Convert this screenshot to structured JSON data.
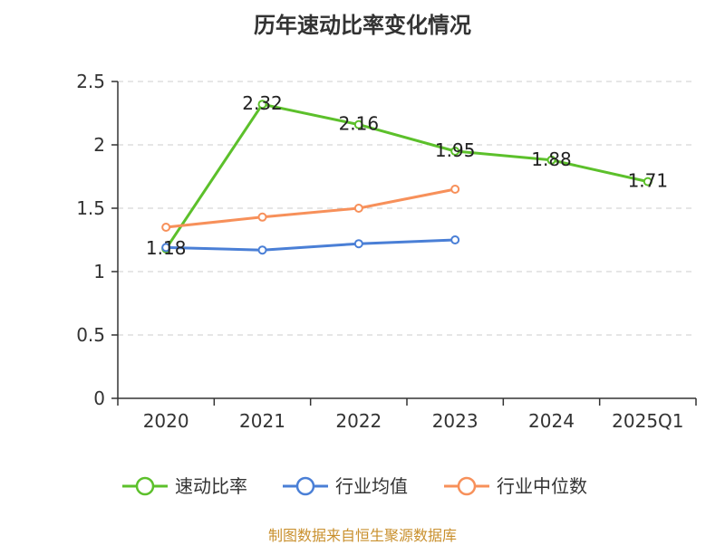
{
  "title": "历年速动比率变化情况",
  "footer": "制图数据来自恒生聚源数据库",
  "colors": {
    "quick_ratio": "#5cc02b",
    "industry_avg": "#4a7fd6",
    "industry_median": "#f7905a"
  },
  "chart_data": {
    "type": "line",
    "categories": [
      "2020",
      "2021",
      "2022",
      "2023",
      "2024",
      "2025Q1"
    ],
    "y_ticks": [
      "0",
      "0.5",
      "1",
      "1.5",
      "2",
      "2.5"
    ],
    "ylim": [
      0,
      2.5
    ],
    "grid": true,
    "legend_position": "bottom",
    "series": [
      {
        "key": "quick_ratio",
        "name": "速动比率",
        "values": [
          1.18,
          2.32,
          2.16,
          1.95,
          1.88,
          1.71
        ],
        "labels": [
          "1.18",
          "2.32",
          "2.16",
          "1.95",
          "1.88",
          "1.71"
        ]
      },
      {
        "key": "industry_avg",
        "name": "行业均值",
        "values": [
          1.19,
          1.17,
          1.22,
          1.25,
          null,
          null
        ]
      },
      {
        "key": "industry_median",
        "name": "行业中位数",
        "values": [
          1.35,
          1.43,
          1.5,
          1.65,
          null,
          null
        ]
      }
    ]
  }
}
